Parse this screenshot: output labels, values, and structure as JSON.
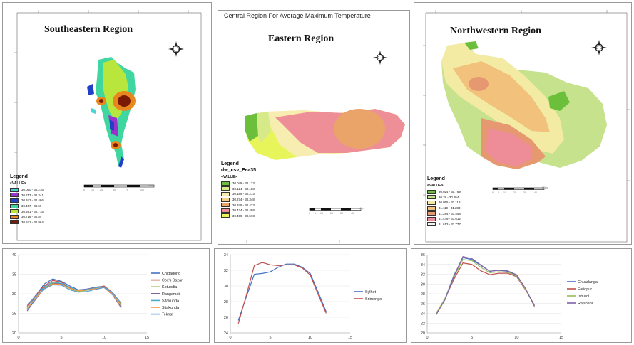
{
  "maps": [
    {
      "title": "Southeastern Region",
      "legend_title": "Legend",
      "legend_header": "<VALUE>",
      "classes": [
        {
          "label": "30.050 - 30.216",
          "color": "#49d6d6"
        },
        {
          "label": "30.217 - 30.341",
          "color": "#9933cc"
        },
        {
          "label": "30.342 - 30.466",
          "color": "#2140c8"
        },
        {
          "label": "30.467 - 30.56",
          "color": "#3fd6a0"
        },
        {
          "label": "30.591 - 30.715",
          "color": "#b8e63c"
        },
        {
          "label": "30.716 - 30.84",
          "color": "#e8871e"
        },
        {
          "label": "30.841 - 30.964",
          "color": "#7a1a06"
        }
      ],
      "scale_label": "Miles",
      "scale_ticks": [
        "0",
        "10",
        "25",
        "50",
        "75",
        "100"
      ]
    },
    {
      "supertitle": "Central Region For Average Maximum Temperature",
      "title": "Eastern Region",
      "legend_title": "Legend",
      "legend_subtitle": "dw_csv_Fea35",
      "legend_header": "<VALUE>",
      "classes": [
        {
          "label": "30.048 - 30.123",
          "color": "#6bbf3a"
        },
        {
          "label": "30.124 - 30.188",
          "color": "#d6ea8a"
        },
        {
          "label": "30.189 - 30.273",
          "color": "#f7edb0"
        },
        {
          "label": "30.274 - 30.348",
          "color": "#f4d08a"
        },
        {
          "label": "30.349 - 30.423",
          "color": "#eaa46a"
        },
        {
          "label": "30.424 - 30.498",
          "color": "#ee8f97"
        },
        {
          "label": "30.499 - 30.573",
          "color": "#e8f55a"
        }
      ],
      "scale_label": "Miles",
      "scale_ticks": [
        "0",
        "5",
        "10",
        "20",
        "30",
        "40"
      ]
    },
    {
      "title": "Northwestern Region",
      "legend_title": "Legend",
      "legend_header": "<VALUE>",
      "classes": [
        {
          "label": "30.024 - 30.769",
          "color": "#6bbf3a"
        },
        {
          "label": "30.78 - 30.954",
          "color": "#c6e28c"
        },
        {
          "label": "30.955 - 31.118",
          "color": "#f3eaa4"
        },
        {
          "label": "31.119 - 31.283",
          "color": "#f2c27c"
        },
        {
          "label": "31.284 - 31.448",
          "color": "#e69870"
        },
        {
          "label": "31.449 - 31.612",
          "color": "#ee8d98"
        },
        {
          "label": "31.613 - 31.777",
          "color": "#f8f3f5"
        }
      ],
      "scale_label": "Miles",
      "scale_ticks": [
        "0",
        "5",
        "10",
        "20",
        "30",
        "40"
      ]
    }
  ],
  "chart_data": [
    {
      "type": "line",
      "x": [
        1,
        2,
        3,
        4,
        5,
        6,
        7,
        8,
        9,
        10,
        11,
        12
      ],
      "xlim": [
        0,
        15
      ],
      "xticks": [
        "0",
        "5",
        "10",
        "15"
      ],
      "ylim": [
        20,
        40
      ],
      "yticks": [
        "20",
        "25",
        "30",
        "35",
        "40"
      ],
      "series": [
        {
          "name": "Chittagong",
          "color": "#4472c4",
          "values": [
            26.0,
            29.5,
            32.5,
            33.8,
            33.2,
            32.0,
            31.0,
            31.2,
            31.7,
            31.9,
            30.0,
            26.8
          ]
        },
        {
          "name": "Cox's Bazar",
          "color": "#c0504d",
          "values": [
            26.8,
            29.6,
            32.0,
            33.4,
            33.0,
            31.5,
            30.8,
            31.0,
            31.5,
            32.0,
            30.3,
            27.4
          ]
        },
        {
          "name": "Kotubdia",
          "color": "#9bbb59",
          "values": [
            26.3,
            29.0,
            31.5,
            32.8,
            32.5,
            31.3,
            30.6,
            30.9,
            31.4,
            31.8,
            30.1,
            27.1
          ]
        },
        {
          "name": "Rangamati",
          "color": "#8064a2",
          "values": [
            25.6,
            28.6,
            31.4,
            32.6,
            32.6,
            31.6,
            30.9,
            31.2,
            31.6,
            31.6,
            29.7,
            26.4
          ]
        },
        {
          "name": "Sitakunda",
          "color": "#4bacc6",
          "values": [
            26.0,
            28.8,
            31.8,
            33.0,
            32.7,
            31.7,
            30.9,
            31.1,
            31.5,
            31.8,
            29.9,
            26.8
          ]
        },
        {
          "name": "Sitakunda",
          "color": "#f79646",
          "values": [
            26.2,
            28.9,
            31.3,
            32.5,
            32.4,
            31.4,
            30.8,
            31.0,
            31.3,
            31.6,
            29.8,
            26.9
          ]
        },
        {
          "name": "Teknaf",
          "color": "#5b9bd5",
          "values": [
            27.2,
            29.4,
            31.2,
            32.3,
            32.2,
            31.0,
            30.4,
            30.6,
            31.1,
            31.6,
            30.2,
            27.6
          ]
        }
      ]
    },
    {
      "type": "line",
      "x": [
        1,
        2,
        3,
        4,
        5,
        6,
        7,
        8,
        9,
        10,
        11,
        12
      ],
      "xlim": [
        0,
        15
      ],
      "xticks": [
        "0",
        "5",
        "10",
        "15"
      ],
      "ylim": [
        24,
        34
      ],
      "yticks": [
        "24",
        "26",
        "28",
        "30",
        "32",
        "34"
      ],
      "series": [
        {
          "name": "Sylhet",
          "color": "#4472c4",
          "values": [
            25.6,
            28.6,
            31.5,
            31.6,
            31.8,
            32.4,
            32.8,
            32.8,
            32.4,
            31.6,
            29.2,
            26.7
          ]
        },
        {
          "name": "Srimongol",
          "color": "#c0504d",
          "values": [
            25.2,
            28.8,
            32.6,
            33.0,
            32.7,
            32.6,
            32.7,
            32.7,
            32.3,
            31.4,
            28.9,
            26.5
          ]
        }
      ]
    },
    {
      "type": "line",
      "x": [
        1,
        2,
        3,
        4,
        5,
        6,
        7,
        8,
        9,
        10,
        11,
        12
      ],
      "xlim": [
        0,
        15
      ],
      "xticks": [
        "0",
        "5",
        "10",
        "15"
      ],
      "ylim": [
        20,
        36
      ],
      "yticks": [
        "20",
        "22",
        "24",
        "26",
        "28",
        "30",
        "32",
        "34",
        "36"
      ],
      "series": [
        {
          "name": "Chuadanga",
          "color": "#4472c4",
          "values": [
            23.8,
            27.0,
            31.8,
            35.4,
            35.0,
            33.8,
            32.6,
            32.8,
            32.6,
            31.8,
            29.0,
            25.6
          ]
        },
        {
          "name": "Faridpur",
          "color": "#c0504d",
          "values": [
            24.0,
            27.0,
            31.0,
            34.3,
            34.0,
            32.7,
            31.9,
            32.2,
            32.2,
            31.5,
            28.8,
            25.7
          ]
        },
        {
          "name": "Ishurdi",
          "color": "#9bbb59",
          "values": [
            23.9,
            27.1,
            31.4,
            35.0,
            34.8,
            33.4,
            32.3,
            32.5,
            32.4,
            31.7,
            28.9,
            25.5
          ]
        },
        {
          "name": "Rajshahi",
          "color": "#8064a2",
          "values": [
            23.7,
            26.8,
            31.6,
            35.6,
            35.2,
            33.9,
            32.6,
            32.8,
            32.7,
            31.9,
            29.1,
            25.4
          ]
        }
      ]
    }
  ]
}
